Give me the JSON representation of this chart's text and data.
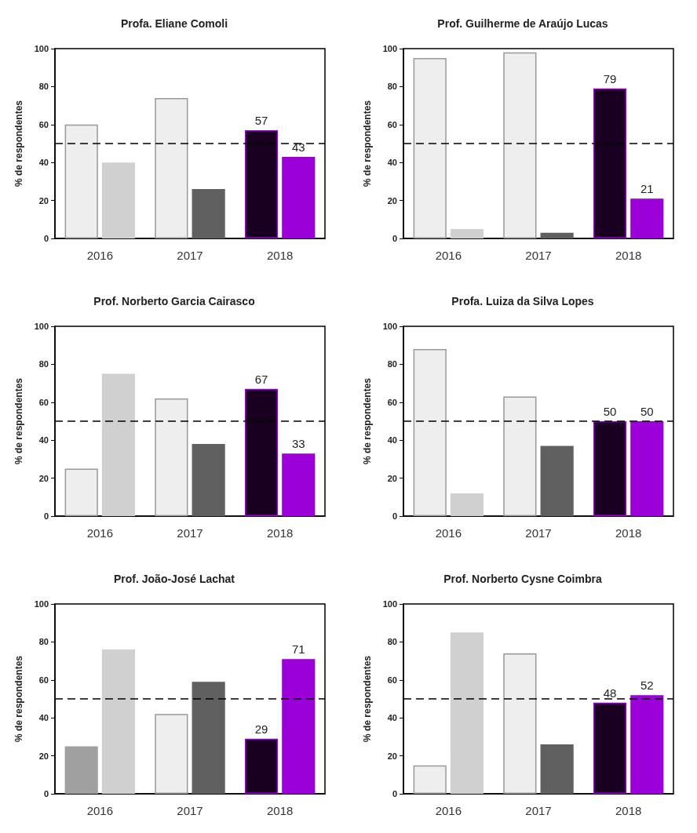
{
  "chart_data": [
    {
      "type": "bar",
      "title": "Profa. Eliane Comoli",
      "ylabel": "% de respondentes",
      "categories": [
        "2016",
        "2017",
        "2018"
      ],
      "ylim": [
        0,
        100
      ],
      "yticks": [
        0,
        20,
        40,
        60,
        80,
        100
      ],
      "grid": false,
      "ref_lines": [
        {
          "axis": "y",
          "value": 50,
          "color": "#000000",
          "line_style": "dashed"
        }
      ],
      "series": [
        {
          "colors": [
            "#eeeeee",
            "#eeeeee",
            "#1a0020"
          ],
          "values": [
            60,
            74,
            57
          ],
          "value_labels": [
            null,
            null,
            "57"
          ]
        },
        {
          "colors": [
            "#d0d0d0",
            "#606060",
            "#9b00d9"
          ],
          "values": [
            40,
            26,
            43
          ],
          "value_labels": [
            null,
            null,
            "43"
          ]
        }
      ]
    },
    {
      "type": "bar",
      "title": "Prof. Guilherme de Araújo Lucas",
      "ylabel": "% de respondentes",
      "categories": [
        "2016",
        "2017",
        "2018"
      ],
      "ylim": [
        0,
        100
      ],
      "yticks": [
        0,
        20,
        40,
        60,
        80,
        100
      ],
      "grid": false,
      "ref_lines": [
        {
          "axis": "y",
          "value": 50,
          "color": "#000000",
          "line_style": "dashed"
        }
      ],
      "series": [
        {
          "colors": [
            "#eeeeee",
            "#eeeeee",
            "#1a0020"
          ],
          "values": [
            95,
            98,
            79
          ],
          "value_labels": [
            null,
            null,
            "79"
          ]
        },
        {
          "colors": [
            "#d0d0d0",
            "#606060",
            "#9b00d9"
          ],
          "values": [
            5,
            3,
            21
          ],
          "value_labels": [
            null,
            null,
            "21"
          ]
        }
      ]
    },
    {
      "type": "bar",
      "title": "Prof. Norberto Garcia Cairasco",
      "ylabel": "% de respondentes",
      "categories": [
        "2016",
        "2017",
        "2018"
      ],
      "ylim": [
        0,
        100
      ],
      "yticks": [
        0,
        20,
        40,
        60,
        80,
        100
      ],
      "grid": false,
      "ref_lines": [
        {
          "axis": "y",
          "value": 50,
          "color": "#000000",
          "line_style": "dashed"
        }
      ],
      "series": [
        {
          "colors": [
            "#eeeeee",
            "#eeeeee",
            "#1a0020"
          ],
          "values": [
            25,
            62,
            67
          ],
          "value_labels": [
            null,
            null,
            "67"
          ]
        },
        {
          "colors": [
            "#d0d0d0",
            "#606060",
            "#9b00d9"
          ],
          "values": [
            75,
            38,
            33
          ],
          "value_labels": [
            null,
            null,
            "33"
          ]
        }
      ]
    },
    {
      "type": "bar",
      "title": "Profa. Luiza da Silva Lopes",
      "ylabel": "% de respondentes",
      "categories": [
        "2016",
        "2017",
        "2018"
      ],
      "ylim": [
        0,
        100
      ],
      "yticks": [
        0,
        20,
        40,
        60,
        80,
        100
      ],
      "grid": false,
      "ref_lines": [
        {
          "axis": "y",
          "value": 50,
          "color": "#000000",
          "line_style": "dashed"
        }
      ],
      "series": [
        {
          "colors": [
            "#eeeeee",
            "#eeeeee",
            "#1a0020"
          ],
          "values": [
            88,
            63,
            50
          ],
          "value_labels": [
            null,
            null,
            "50"
          ]
        },
        {
          "colors": [
            "#d0d0d0",
            "#606060",
            "#9b00d9"
          ],
          "values": [
            12,
            37,
            50
          ],
          "value_labels": [
            null,
            null,
            "50"
          ]
        }
      ]
    },
    {
      "type": "bar",
      "title": "Prof. João-José Lachat",
      "ylabel": "% de respondentes",
      "categories": [
        "2016",
        "2017",
        "2018"
      ],
      "ylim": [
        0,
        100
      ],
      "yticks": [
        0,
        20,
        40,
        60,
        80,
        100
      ],
      "grid": false,
      "ref_lines": [
        {
          "axis": "y",
          "value": 50,
          "color": "#000000",
          "line_style": "dashed"
        }
      ],
      "series": [
        {
          "colors": [
            "#a0a0a0",
            "#eeeeee",
            "#1a0020"
          ],
          "values": [
            25,
            42,
            29
          ],
          "value_labels": [
            null,
            null,
            "29"
          ]
        },
        {
          "colors": [
            "#d0d0d0",
            "#606060",
            "#9b00d9"
          ],
          "values": [
            76,
            59,
            71
          ],
          "value_labels": [
            null,
            null,
            "71"
          ]
        }
      ]
    },
    {
      "type": "bar",
      "title": "Prof. Norberto Cysne Coimbra",
      "ylabel": "% de respondentes",
      "categories": [
        "2016",
        "2017",
        "2018"
      ],
      "ylim": [
        0,
        100
      ],
      "yticks": [
        0,
        20,
        40,
        60,
        80,
        100
      ],
      "grid": false,
      "ref_lines": [
        {
          "axis": "y",
          "value": 50,
          "color": "#000000",
          "line_style": "dashed"
        }
      ],
      "series": [
        {
          "colors": [
            "#eeeeee",
            "#eeeeee",
            "#1a0020"
          ],
          "values": [
            15,
            74,
            48
          ],
          "value_labels": [
            null,
            null,
            "48"
          ]
        },
        {
          "colors": [
            "#d0d0d0",
            "#606060",
            "#9b00d9"
          ],
          "values": [
            85,
            26,
            52
          ],
          "value_labels": [
            null,
            null,
            "52"
          ]
        }
      ]
    }
  ]
}
